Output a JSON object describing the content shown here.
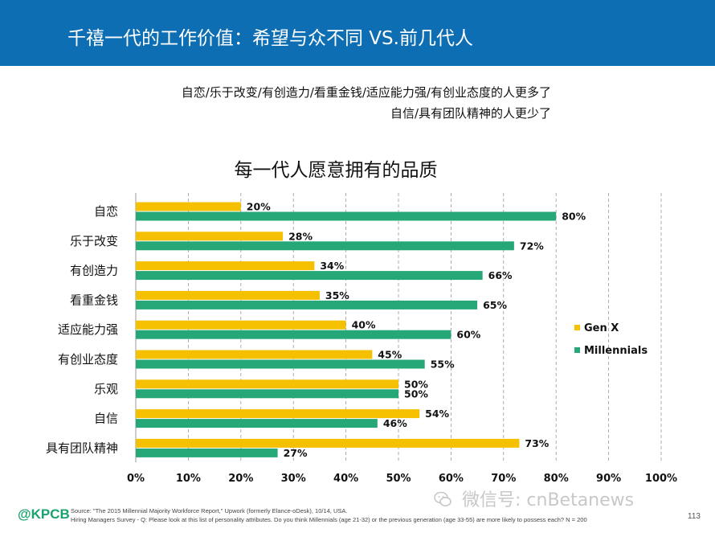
{
  "header": {
    "title": "千禧一代的工作价值：希望与众不同 VS.前几代人"
  },
  "subtitle": {
    "line1": "自恋/乐于改变/有创造力/看重金钱/适应能力强/有创业态度的人更多了",
    "line2": "自信/具有团队精神的人更少了"
  },
  "chart_data": {
    "type": "bar",
    "orientation": "horizontal",
    "title": "每一代人愿意拥有的品质",
    "categories": [
      "自恋",
      "乐于改变",
      "有创造力",
      "看重金钱",
      "适应能力强",
      "有创业态度",
      "乐观",
      "自信",
      "具有团队精神"
    ],
    "series": [
      {
        "name": "Gen X",
        "color": "#f5c000",
        "values": [
          20,
          28,
          34,
          35,
          40,
          45,
          50,
          54,
          73
        ],
        "labels": [
          "20%",
          "28%",
          "34%",
          "35%",
          "40%",
          "45%",
          "50%",
          "54%",
          "73%"
        ]
      },
      {
        "name": "Millennials",
        "color": "#25a777",
        "values": [
          80,
          72,
          66,
          65,
          60,
          55,
          50,
          46,
          27
        ],
        "labels": [
          "80%",
          "72%",
          "66%",
          "65%",
          "60%",
          "55%",
          "50%",
          "46%",
          "27%"
        ]
      }
    ],
    "xlim": [
      0,
      100
    ],
    "xticks": [
      0,
      10,
      20,
      30,
      40,
      50,
      60,
      70,
      80,
      90,
      100
    ],
    "xtick_labels": [
      "0%",
      "10%",
      "20%",
      "30%",
      "40%",
      "50%",
      "60%",
      "70%",
      "80%",
      "90%",
      "100%"
    ],
    "grid": "vertical dashed",
    "legend": "right"
  },
  "footer": {
    "logo": "@KPCB",
    "source1": "Source: \"The 2015 Millennial Majority Workforce Report,\" Upwork (formerly Elance-oDesk), 10/14, USA.",
    "source2": "Hiring Managers Survey - Q: Please look at this list of personality attributes. Do you think Millennials (age 21-32) or the previous generation (age 33-55) are more likely to possess each? N = 200",
    "watermark": "微信号: cnBetanews",
    "page": "113"
  },
  "colors": {
    "header": "#0e6eb3",
    "genx": "#f5c000",
    "millennials": "#25a777",
    "logo": "#1aa36d"
  }
}
